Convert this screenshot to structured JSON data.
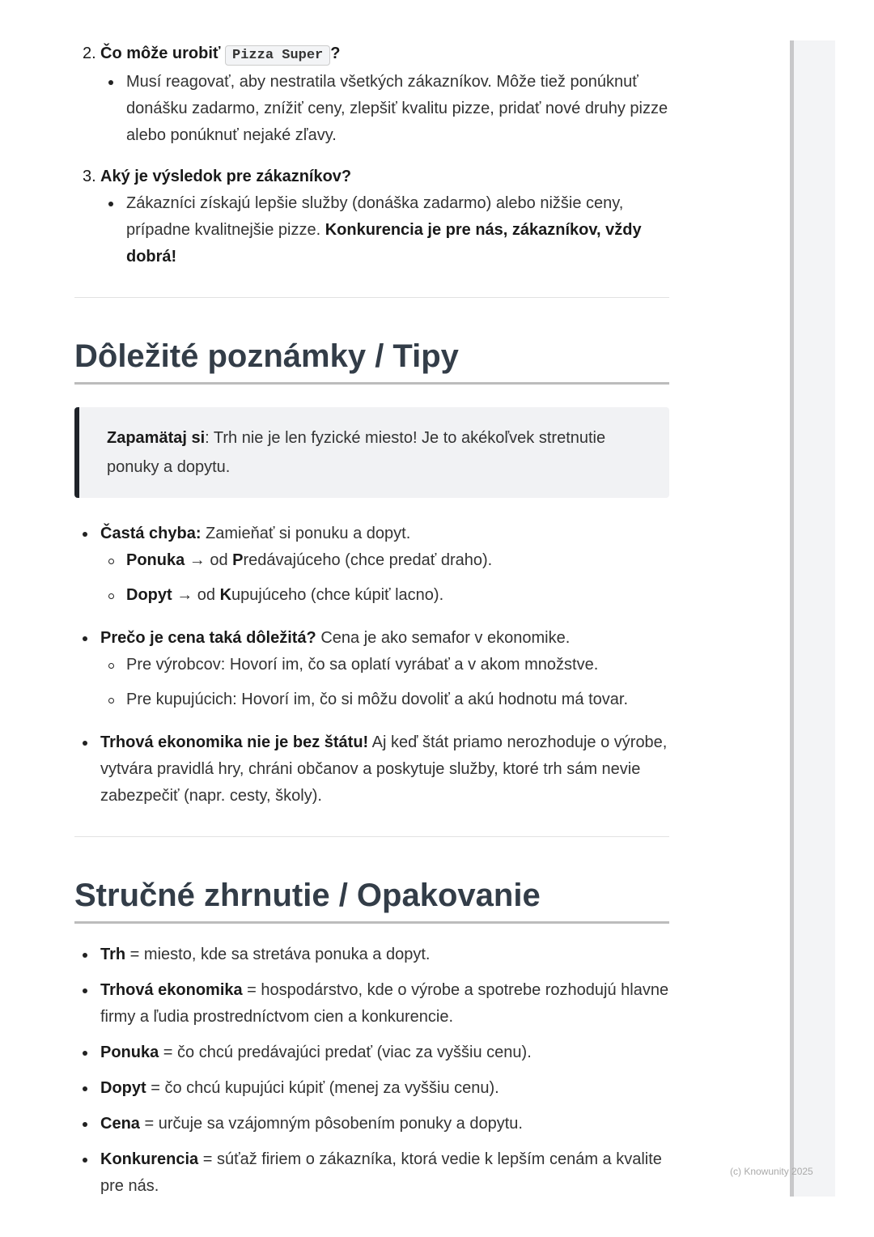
{
  "questions": [
    {
      "number": "2.",
      "title_pre": "Čo môže urobiť",
      "code": "Pizza Super",
      "title_post": "?",
      "answer": "Musí reagovať, aby nestratila všetkých zákazníkov. Môže tiež ponúknuť donášku zadarmo, znížiť ceny, zlepšiť kvalitu pizze, pridať nové druhy pizze alebo ponúknuť nejaké zľavy."
    },
    {
      "number": "3.",
      "title": "Aký je výsledok pre zákazníkov?",
      "answer": "Zákazníci získajú lepšie služby (donáška zadarmo) alebo nižšie ceny, prípadne kvalitnejšie pizze.",
      "answer_bold": "Konkurencia je pre nás, zákazníkov, vždy dobrá!"
    }
  ],
  "tips": {
    "heading": "Dôležité poznámky / Tipy",
    "quote_bold": "Zapamätaj si",
    "quote_text": ": Trh nie je len fyzické miesto! Je to akékoľvek stretnutie ponuky a dopytu.",
    "items": [
      {
        "bold": "Častá chyba:",
        "text": " Zamieňať si ponuku a dopyt.",
        "sub": [
          {
            "bold": "Ponuka",
            "t1": " → od ",
            "letter": "P",
            "t2": "redávajúceho (chce predať draho)."
          },
          {
            "bold": "Dopyt",
            "t1": " → od ",
            "letter": "K",
            "t2": "upujúceho (chce kúpiť lacno)."
          }
        ]
      },
      {
        "bold": "Prečo je cena taká dôležitá?",
        "text": " Cena je ako semafor v ekonomike.",
        "sub2": [
          "Pre výrobcov: Hovorí im, čo sa oplatí vyrábať a v akom množstve.",
          "Pre kupujúcich: Hovorí im, čo si môžu dovoliť a akú hodnotu má tovar."
        ]
      },
      {
        "bold": "Trhová ekonomika nie je bez štátu!",
        "text": " Aj keď štát priamo nerozhoduje o výrobe, vytvára pravidlá hry, chráni občanov a poskytuje služby, ktoré trh sám nevie zabezpečiť (napr. cesty, školy)."
      }
    ]
  },
  "summary": {
    "heading": "Stručné zhrnutie / Opakovanie",
    "items": [
      {
        "bold": "Trh",
        "text": " = miesto, kde sa stretáva ponuka a dopyt."
      },
      {
        "bold": "Trhová ekonomika",
        "text": " = hospodárstvo, kde o výrobe a spotrebe rozhodujú hlavne firmy a ľudia prostredníctvom cien a konkurencie."
      },
      {
        "bold": "Ponuka",
        "text": " = čo chcú predávajúci predať (viac za vyššiu cenu)."
      },
      {
        "bold": "Dopyt",
        "text": " = čo chcú kupujúci kúpiť (menej za vyššiu cenu)."
      },
      {
        "bold": "Cena",
        "text": " = určuje sa vzájomným pôsobením ponuky a dopytu."
      },
      {
        "bold": "Konkurencia",
        "text": " = súťaž firiem o zákazníka, ktorá vedie k lepším cenám a kvalite pre nás."
      }
    ]
  },
  "footer": {
    "copyright": "(c) Knowunity 2025"
  }
}
